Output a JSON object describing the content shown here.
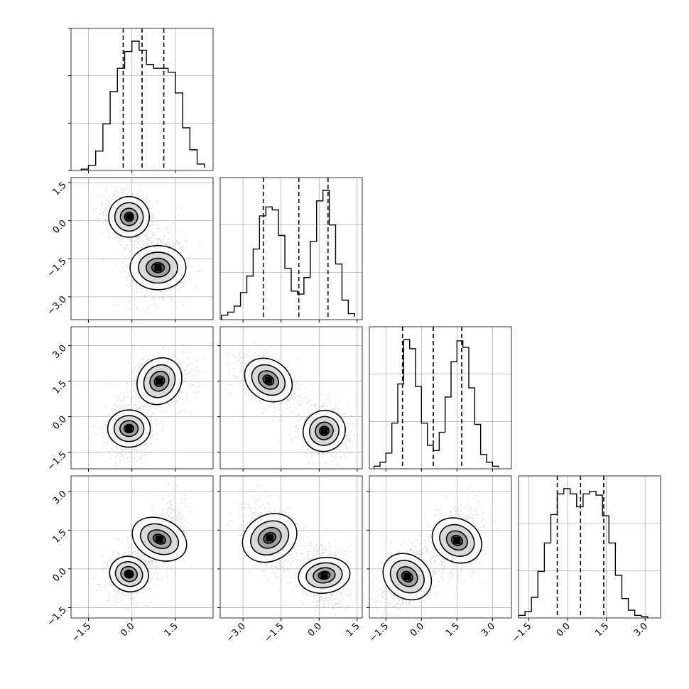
{
  "chart_data": {
    "type": "corner",
    "dims": 4,
    "grid": true,
    "colors": {
      "line": "#000000",
      "grid": "#b0b0b0",
      "scatter": "#7a7a7a",
      "fill_dark": "#000000",
      "fill_light": "#ffffff"
    },
    "quantiles": [
      [
        -0.3,
        0.35,
        1.1
      ],
      [
        -2.2,
        -0.8,
        0.35
      ],
      [
        -0.8,
        0.5,
        1.7
      ],
      [
        -0.4,
        0.5,
        1.4
      ]
    ],
    "ranges": [
      [
        -2.1,
        2.8
      ],
      [
        -3.9,
        1.7
      ],
      [
        -2.2,
        3.8
      ],
      [
        -1.9,
        3.6
      ]
    ],
    "tick_values": [
      [
        -1.5,
        0.0,
        1.5
      ],
      [
        -3.0,
        -1.5,
        0.0,
        1.5
      ],
      [
        -1.5,
        0.0,
        1.5,
        3.0
      ],
      [
        -1.5,
        0.0,
        1.5,
        3.0
      ]
    ],
    "tick_labels": [
      [
        "−1.5",
        "0.0",
        "1.5"
      ],
      [
        "−3.0",
        "−1.5",
        "0.0",
        "1.5"
      ],
      [
        "−1.5",
        "0.0",
        "1.5",
        "3.0"
      ],
      [
        "−1.5",
        "0.0",
        "1.5",
        "3.0"
      ]
    ],
    "histograms": [
      {
        "bins": [
          -1.75,
          -1.5,
          -1.25,
          -1.0,
          -0.75,
          -0.5,
          -0.25,
          0.0,
          0.25,
          0.5,
          0.75,
          1.0,
          1.25,
          1.5,
          1.75,
          2.0,
          2.25,
          2.5
        ],
        "counts": [
          0.01,
          0.04,
          0.15,
          0.36,
          0.61,
          0.79,
          0.92,
          1.0,
          0.93,
          0.82,
          0.79,
          0.79,
          0.76,
          0.6,
          0.33,
          0.16,
          0.05,
          0.02
        ]
      },
      {
        "bins": [
          -3.85,
          -3.6,
          -3.35,
          -3.1,
          -2.85,
          -2.6,
          -2.35,
          -2.1,
          -1.85,
          -1.6,
          -1.35,
          -1.1,
          -0.85,
          -0.6,
          -0.35,
          -0.1,
          0.15,
          0.4,
          0.65,
          0.9,
          1.15,
          1.4
        ],
        "counts": [
          0.03,
          0.05,
          0.09,
          0.18,
          0.29,
          0.47,
          0.69,
          0.75,
          0.73,
          0.56,
          0.34,
          0.19,
          0.17,
          0.28,
          0.52,
          0.79,
          0.86,
          0.63,
          0.37,
          0.13,
          0.04,
          0.02
        ]
      },
      {
        "bins": [
          -2.0,
          -1.75,
          -1.5,
          -1.25,
          -1.0,
          -0.75,
          -0.5,
          -0.25,
          0.0,
          0.25,
          0.5,
          0.75,
          1.0,
          1.25,
          1.5,
          1.75,
          2.0,
          2.25,
          2.5,
          2.75,
          3.0,
          3.25
        ],
        "counts": [
          0.02,
          0.05,
          0.12,
          0.35,
          0.65,
          0.99,
          0.92,
          0.63,
          0.35,
          0.18,
          0.14,
          0.28,
          0.55,
          0.82,
          0.98,
          0.93,
          0.62,
          0.34,
          0.11,
          0.05,
          0.02,
          0.01
        ]
      },
      {
        "bins": [
          -1.9,
          -1.65,
          -1.4,
          -1.15,
          -0.9,
          -0.65,
          -0.4,
          -0.15,
          0.1,
          0.35,
          0.6,
          0.85,
          1.1,
          1.35,
          1.6,
          1.85,
          2.1,
          2.35,
          2.6,
          2.85,
          3.1
        ],
        "counts": [
          0.02,
          0.05,
          0.16,
          0.36,
          0.58,
          0.8,
          0.96,
          1.0,
          0.96,
          0.86,
          0.96,
          0.98,
          0.95,
          0.79,
          0.58,
          0.33,
          0.15,
          0.06,
          0.02,
          0.01
        ]
      }
    ],
    "blobs": [
      {
        "row": 1,
        "col": 0,
        "components": [
          {
            "mx": -0.1,
            "my": 0.15,
            "sx": 0.35,
            "sy": 0.4,
            "rho": -0.3
          },
          {
            "mx": 0.9,
            "my": -1.85,
            "sx": 0.38,
            "sy": 0.55,
            "rho": 0.0
          }
        ]
      },
      {
        "row": 2,
        "col": 0,
        "components": [
          {
            "mx": -0.1,
            "my": -0.5,
            "sx": 0.32,
            "sy": 0.45,
            "rho": 0.0
          },
          {
            "mx": 0.95,
            "my": 1.5,
            "sx": 0.42,
            "sy": 0.45,
            "rho": 0.2
          }
        ]
      },
      {
        "row": 2,
        "col": 1,
        "components": [
          {
            "mx": -2.0,
            "my": 1.55,
            "sx": 0.5,
            "sy": 0.42,
            "rho": -0.45
          },
          {
            "mx": 0.2,
            "my": -0.6,
            "sx": 0.4,
            "sy": 0.45,
            "rho": -0.2
          }
        ]
      },
      {
        "row": 3,
        "col": 0,
        "components": [
          {
            "mx": -0.1,
            "my": -0.2,
            "sx": 0.3,
            "sy": 0.38,
            "rho": 0.2
          },
          {
            "mx": 0.95,
            "my": 1.15,
            "sx": 0.35,
            "sy": 0.55,
            "rho": 0.55
          }
        ]
      },
      {
        "row": 3,
        "col": 1,
        "components": [
          {
            "mx": -1.95,
            "my": 1.2,
            "sx": 0.45,
            "sy": 0.55,
            "rho": -0.35
          },
          {
            "mx": 0.2,
            "my": -0.25,
            "sx": 0.35,
            "sy": 0.5,
            "rho": -0.1
          }
        ]
      },
      {
        "row": 3,
        "col": 2,
        "components": [
          {
            "mx": -0.6,
            "my": -0.3,
            "sx": 0.45,
            "sy": 0.5,
            "rho": 0.5
          },
          {
            "mx": 1.5,
            "my": 1.1,
            "sx": 0.45,
            "sy": 0.5,
            "rho": 0.2
          }
        ]
      }
    ]
  }
}
